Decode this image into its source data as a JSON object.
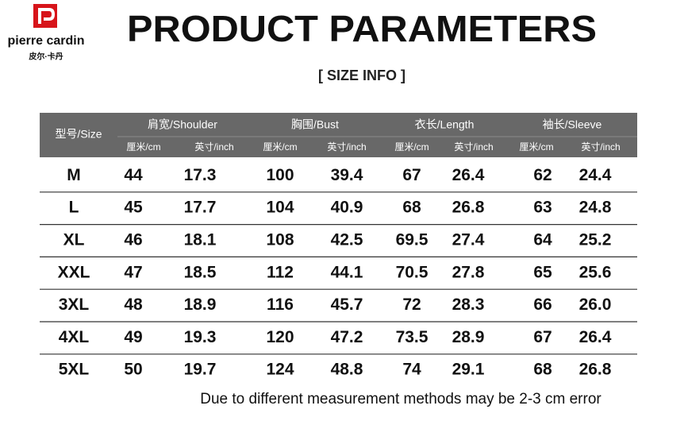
{
  "logo": {
    "brand": "pierre cardin",
    "chinese": "皮尔·卡丹"
  },
  "header": {
    "title": "PRODUCT PARAMETERS",
    "subtitle": "[ SIZE INFO ]"
  },
  "table": {
    "size_header": "型号/Size",
    "groups": [
      "肩宽/Shoulder",
      "胸围/Bust",
      "衣长/Length",
      "袖长/Sleeve"
    ],
    "subheaders": [
      "厘米/cm",
      "英寸/inch",
      "厘米/cm",
      "英寸/inch",
      "厘米/cm",
      "英寸/inch",
      "厘米/cm",
      "英寸/inch"
    ],
    "rows": [
      [
        "M",
        "44",
        "17.3",
        "100",
        "39.4",
        "67",
        "26.4",
        "62",
        "24.4"
      ],
      [
        "L",
        "45",
        "17.7",
        "104",
        "40.9",
        "68",
        "26.8",
        "63",
        "24.8"
      ],
      [
        "XL",
        "46",
        "18.1",
        "108",
        "42.5",
        "69.5",
        "27.4",
        "64",
        "25.2"
      ],
      [
        "XXL",
        "47",
        "18.5",
        "112",
        "44.1",
        "70.5",
        "27.8",
        "65",
        "25.6"
      ],
      [
        "3XL",
        "48",
        "18.9",
        "116",
        "45.7",
        "72",
        "28.3",
        "66",
        "26.0"
      ],
      [
        "4XL",
        "49",
        "19.3",
        "120",
        "47.2",
        "73.5",
        "28.9",
        "67",
        "26.4"
      ],
      [
        "5XL",
        "50",
        "19.7",
        "124",
        "48.8",
        "74",
        "29.1",
        "68",
        "26.8"
      ]
    ]
  },
  "note": "Due to different measurement methods may be 2-3 cm error"
}
